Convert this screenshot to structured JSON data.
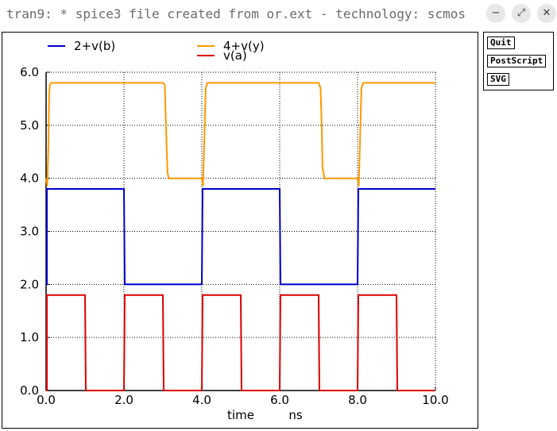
{
  "window": {
    "title": "tran9: * spice3 file created from or.ext - technology: scmos",
    "controls": {
      "minimize": "−",
      "maximize": "⤢",
      "close": "✕"
    }
  },
  "panel": {
    "quit_label": "Quit",
    "postscript_label": "PostScript",
    "svg_label": "SVG"
  },
  "chart_data": {
    "type": "line",
    "xlabel": "time",
    "xunit": "ns",
    "xlim": [
      0,
      10
    ],
    "ylim": [
      0,
      6
    ],
    "grid": true,
    "legend_position": "top",
    "xticks": [
      "0.0",
      "2.0",
      "4.0",
      "6.0",
      "8.0",
      "10.0"
    ],
    "yticks": [
      "0.0",
      "1.0",
      "2.0",
      "3.0",
      "4.0",
      "5.0",
      "6.0"
    ],
    "series": [
      {
        "name": "2+v(b)",
        "color": "#0000cc",
        "x": [
          0,
          0.02,
          0.02,
          2.0,
          2.02,
          4.0,
          4.02,
          6.0,
          6.02,
          8.0,
          8.02,
          10.0
        ],
        "y": [
          2.0,
          2.0,
          3.8,
          3.8,
          2.0,
          2.0,
          3.8,
          3.8,
          2.0,
          2.0,
          3.8,
          3.8
        ]
      },
      {
        "name": "4+v(y)",
        "color": "#ff9900",
        "x": [
          0,
          0.03,
          0.06,
          0.08,
          0.1,
          0.14,
          1.0,
          3.0,
          3.05,
          3.08,
          3.1,
          3.12,
          3.15,
          4.0,
          4.03,
          4.06,
          4.1,
          4.14,
          5.0,
          7.0,
          7.05,
          7.08,
          7.1,
          7.15,
          8.0,
          8.03,
          8.06,
          8.1,
          8.14,
          10.0
        ],
        "y": [
          4.0,
          3.85,
          4.6,
          5.6,
          5.78,
          5.8,
          5.8,
          5.8,
          5.76,
          5.0,
          4.5,
          4.1,
          4.0,
          4.0,
          3.85,
          4.6,
          5.7,
          5.8,
          5.8,
          5.8,
          5.7,
          5.0,
          4.2,
          4.0,
          4.0,
          3.85,
          4.6,
          5.7,
          5.8,
          5.8
        ]
      },
      {
        "name": "v(a)",
        "color": "#dd0000",
        "x": [
          0,
          0.02,
          0.02,
          1.0,
          1.02,
          2.0,
          2.02,
          3.0,
          3.02,
          4.0,
          4.02,
          5.0,
          5.02,
          6.0,
          6.02,
          7.0,
          7.02,
          8.0,
          8.02,
          9.0,
          9.02,
          10.0
        ],
        "y": [
          0,
          0,
          1.8,
          1.8,
          0,
          0,
          1.8,
          1.8,
          0,
          0,
          1.8,
          1.8,
          0,
          0,
          1.8,
          1.8,
          0,
          0,
          1.8,
          1.8,
          0,
          0
        ]
      }
    ]
  }
}
